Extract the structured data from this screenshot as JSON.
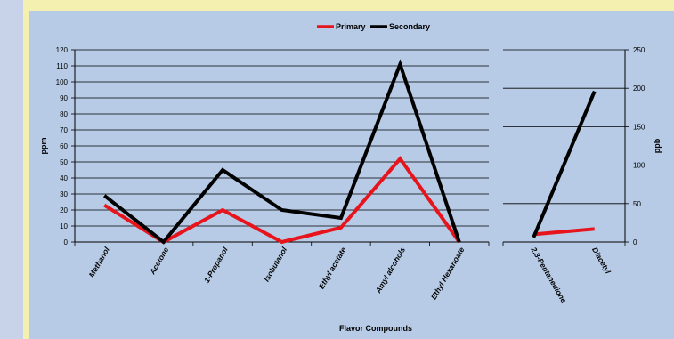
{
  "chart_data": [
    {
      "type": "line",
      "categories": [
        "Methanol",
        "Acetone",
        "1-Propanol",
        "Isobutanol",
        "Ethyl acetate",
        "Amyl alcohols",
        "Ethyl Hexanoate"
      ],
      "series": [
        {
          "name": "Primary",
          "values": [
            23,
            0,
            20,
            0,
            9,
            52,
            0
          ],
          "color": "#e8141c"
        },
        {
          "name": "Secondary",
          "values": [
            29,
            0,
            45,
            20,
            15,
            111,
            0
          ],
          "color": "#000000"
        }
      ],
      "ylabel": "ppm",
      "xlabel": "Flavor Compounds",
      "ylim": [
        0,
        120
      ],
      "yticks": [
        0,
        10,
        20,
        30,
        40,
        50,
        60,
        70,
        80,
        90,
        100,
        110,
        120
      ],
      "grid": true
    },
    {
      "type": "line",
      "categories": [
        "2,3-Pentanedione",
        "Diacetyl"
      ],
      "series": [
        {
          "name": "Primary",
          "values": [
            10,
            17
          ],
          "color": "#e8141c"
        },
        {
          "name": "Secondary",
          "values": [
            6,
            196
          ],
          "color": "#000000"
        }
      ],
      "ylabel": "ppb",
      "ylim": [
        0,
        250
      ],
      "yticks": [
        0,
        50,
        100,
        150,
        200,
        250
      ],
      "grid": true
    }
  ],
  "legend": {
    "position": "top-center",
    "items": [
      {
        "label": "Primary",
        "color": "#e8141c"
      },
      {
        "label": "Secondary",
        "color": "#000000"
      }
    ]
  }
}
